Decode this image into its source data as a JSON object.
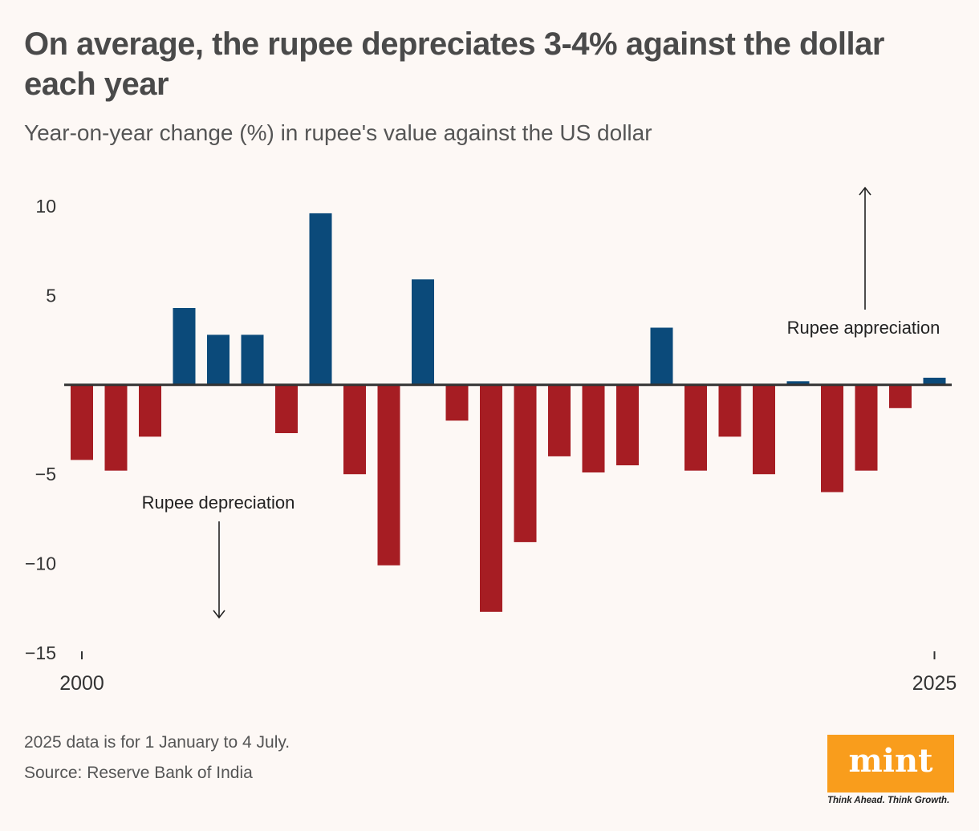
{
  "header": {
    "title": "On average, the rupee depreciates 3-4% against the dollar each year",
    "subtitle": "Year-on-year change (%) in rupee's value against the US dollar"
  },
  "footer": {
    "note": "2025 data is for 1 January to 4 July.",
    "source": "Source: Reserve Bank of India",
    "logo_text": "mint",
    "tagline": "Think Ahead. Think Growth."
  },
  "colors": {
    "appreciation": "#0b4a7a",
    "depreciation": "#a61d23",
    "text": "#4a4a4a",
    "logo": "#f99d1c"
  },
  "chart_data": {
    "type": "bar",
    "title": "On average, the rupee depreciates 3-4% against the dollar each year",
    "subtitle": "Year-on-year change (%) in rupee's value against the US dollar",
    "xlabel": "",
    "ylabel": "",
    "ylim": [
      -15,
      10
    ],
    "yticks": [
      10,
      5,
      -5,
      -10,
      -15
    ],
    "ytick_labels": [
      "10",
      "5",
      "−5",
      "−10",
      "−15"
    ],
    "xtick_labels": [
      "2000",
      "2025"
    ],
    "categories": [
      "2000",
      "2001",
      "2002",
      "2003",
      "2004",
      "2005",
      "2006",
      "2007",
      "2008",
      "2009",
      "2010",
      "2011",
      "2012",
      "2013",
      "2014",
      "2015",
      "2016",
      "2017",
      "2018",
      "2019",
      "2020",
      "2021",
      "2022",
      "2023",
      "2024",
      "2025"
    ],
    "values": [
      -4.2,
      -4.8,
      -2.9,
      4.3,
      2.8,
      2.8,
      -2.7,
      9.6,
      -5.0,
      -10.1,
      5.9,
      -2.0,
      -12.7,
      -8.8,
      -4.0,
      -4.9,
      -4.5,
      3.2,
      -4.8,
      -2.9,
      -5.0,
      0.2,
      -6.0,
      -4.8,
      -1.3,
      0.4
    ],
    "annotations": [
      {
        "text": "Rupee appreciation",
        "arrow": "up"
      },
      {
        "text": "Rupee depreciation",
        "arrow": "down"
      }
    ]
  }
}
